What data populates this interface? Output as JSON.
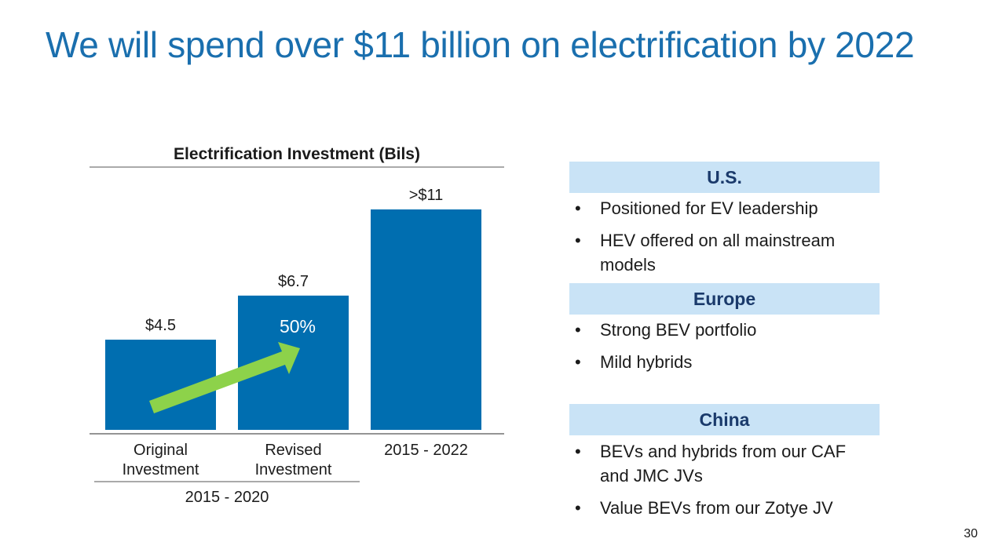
{
  "slide": {
    "title": "We will spend over $11 billion on electrification by 2022",
    "page_number": "30"
  },
  "colors": {
    "title": "#1a6fae",
    "bar": "#006eb0",
    "arrow": "#8dd24a",
    "region_header_bg": "#c9e3f6",
    "region_header_text": "#1a3a6b"
  },
  "chart_data": {
    "type": "bar",
    "title": "Electrification Investment (Bils)",
    "categories": [
      "Original Investment",
      "Revised Investment",
      "2015 - 2022"
    ],
    "category_lines": [
      [
        "Original",
        "Investment"
      ],
      [
        "Revised",
        "Investment"
      ],
      [
        "2015 - 2022"
      ]
    ],
    "values": [
      4.5,
      6.7,
      11
    ],
    "data_labels": [
      "$4.5",
      "$6.7",
      ">$11"
    ],
    "group_label": "2015 - 2020",
    "annotation": {
      "text": "50%",
      "icon": "up-right-arrow"
    },
    "ylim": [
      0,
      11
    ],
    "grid": false,
    "legend": "none"
  },
  "regions": [
    {
      "name": "U.S.",
      "bullets": [
        "Positioned for EV leadership",
        "HEV offered on all mainstream models"
      ]
    },
    {
      "name": "Europe",
      "bullets": [
        "Strong BEV portfolio",
        "Mild hybrids"
      ]
    },
    {
      "name": "China",
      "bullets": [
        "BEVs and hybrids from our CAF and JMC JVs",
        "Value BEVs from our Zotye JV"
      ]
    }
  ],
  "bullet_glyph": "•"
}
